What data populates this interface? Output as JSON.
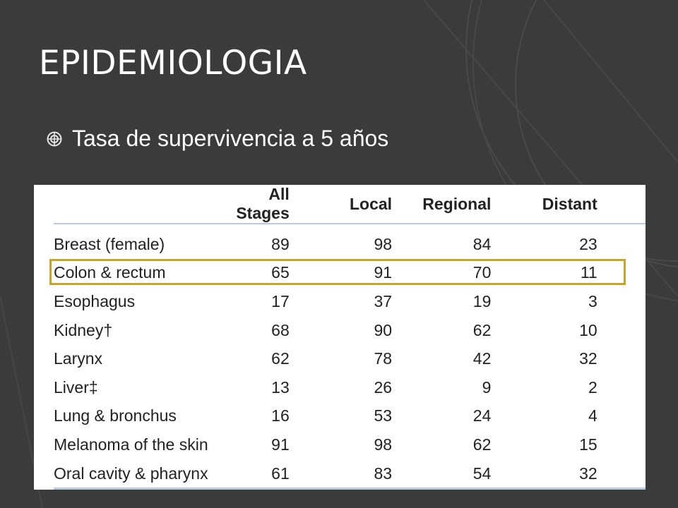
{
  "slide": {
    "title": "EPIDEMIOLOGIA",
    "bullet": "Tasa de supervivencia a 5 años",
    "bullet_icon": "circled-target-icon"
  },
  "table": {
    "headers": [
      "",
      "All Stages",
      "Local",
      "Regional",
      "Distant"
    ],
    "rows": [
      {
        "site": "Breast (female)",
        "all_stages": "89",
        "local": "98",
        "regional": "84",
        "distant": "23"
      },
      {
        "site": "Colon & rectum",
        "all_stages": "65",
        "local": "91",
        "regional": "70",
        "distant": "11"
      },
      {
        "site": "Esophagus",
        "all_stages": "17",
        "local": "37",
        "regional": "19",
        "distant": "3"
      },
      {
        "site": "Kidney†",
        "all_stages": "68",
        "local": "90",
        "regional": "62",
        "distant": "10"
      },
      {
        "site": "Larynx",
        "all_stages": "62",
        "local": "78",
        "regional": "42",
        "distant": "32"
      },
      {
        "site": "Liver‡",
        "all_stages": "13",
        "local": "26",
        "regional": "9",
        "distant": "2"
      },
      {
        "site": "Lung & bronchus",
        "all_stages": "16",
        "local": "53",
        "regional": "24",
        "distant": "4"
      },
      {
        "site": "Melanoma of the skin",
        "all_stages": "91",
        "local": "98",
        "regional": "62",
        "distant": "15"
      },
      {
        "site": "Oral cavity & pharynx",
        "all_stages": "61",
        "local": "83",
        "regional": "54",
        "distant": "32"
      }
    ],
    "highlighted_row": "Colon & rectum"
  },
  "colors": {
    "background": "#3b3b3b",
    "decor_lines": "#4a4a4a",
    "highlight": "#c8a526",
    "table_rule": "#b8c9e2"
  }
}
